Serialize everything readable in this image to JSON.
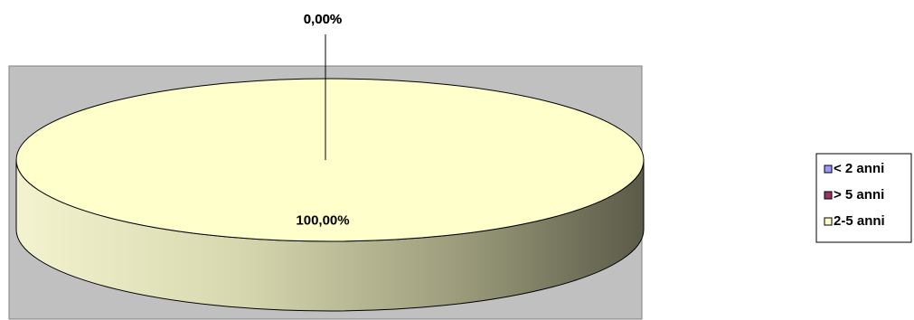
{
  "chart_data": {
    "type": "pie",
    "categories": [
      "< 2 anni",
      "> 5 anni",
      "2-5 anni"
    ],
    "values": [
      0,
      0,
      100
    ],
    "value_labels": [
      "0,00%",
      "0,00%",
      "100,00%"
    ],
    "colors": [
      "#9999ff",
      "#993366",
      "#ffffcc"
    ],
    "legend": "right"
  }
}
